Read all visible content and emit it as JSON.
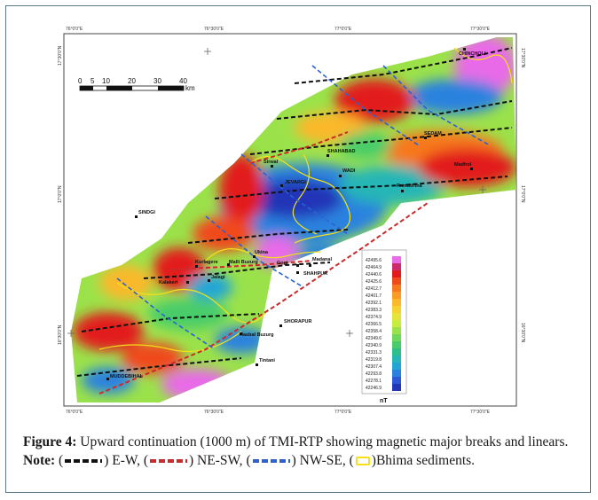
{
  "map": {
    "coords_top": [
      "76°30'0\"E",
      "77°0'0\"E",
      "77°30'0\"E"
    ],
    "coords_top_first": "76°0'0\"E",
    "coords_bottom": [
      "76°0'0\"E",
      "76°30'0\"E",
      "77°0'0\"E",
      "77°30'0\"E"
    ],
    "coords_left": [
      "17°30'0\"N",
      "17°0'0\"N",
      "16°30'0\"N"
    ],
    "coords_right": [
      "17°30'0\"N",
      "17°0'0\"N",
      "16°30'0\"N"
    ],
    "scale": {
      "ticks": [
        "0",
        "5",
        "10",
        "20",
        "30",
        "40"
      ],
      "unit": "km"
    },
    "places": [
      "CHINCHOLI",
      "SEDAM",
      "SHAHABAD",
      "WADI",
      "Madhol",
      "Ramatirtha",
      "Sirwal",
      "JEVARGI",
      "SINDGI",
      "Ukina",
      "Kurlagere",
      "Malli Buzurg",
      "Gogi",
      "Madanal",
      "SHAHPUR",
      "Kalakeri",
      "Jalagi",
      "SHORAPUR",
      "Hasbal Buzurg",
      "Tintani",
      "MUDDEBIHAL"
    ],
    "legend": {
      "values": [
        "42495.6",
        "42464.9",
        "42440.6",
        "42425.6",
        "42412.7",
        "42401.7",
        "42392.1",
        "42383.3",
        "42374.9",
        "42366.5",
        "42358.4",
        "42349.6",
        "42340.9",
        "42331.3",
        "42319.8",
        "42307.4",
        "42293.8",
        "42278.1",
        "42246.9"
      ],
      "colors": [
        "#e86be8",
        "#cc2a6a",
        "#e21a1a",
        "#f04a1a",
        "#f7781e",
        "#f99b24",
        "#fbb82a",
        "#f6d230",
        "#e4e43a",
        "#c6ec40",
        "#9be24a",
        "#6fd85a",
        "#48cc6a",
        "#2fbf8a",
        "#25b6b6",
        "#23a6d6",
        "#2a82df",
        "#2c58d6",
        "#2236b8"
      ],
      "unit": "nT"
    }
  },
  "caption": {
    "label": "Figure 4:",
    "text": " Upward continuation (1000 m) of TMI-RTP showing magnetic major breaks and linears. ",
    "note_label": "Note:",
    "items": [
      {
        "open": " (",
        "close": ") E-W, ",
        "color": "#111111"
      },
      {
        "open": "(",
        "close": ") NE-SW, ",
        "color": "#cc2a2a"
      },
      {
        "open": "(",
        "close": ") NW-SE, ",
        "color": "#2a62d6"
      }
    ],
    "last_open": "(",
    "last_close": ")Bhima sediments.",
    "bhima_color": "#f4e01a"
  }
}
